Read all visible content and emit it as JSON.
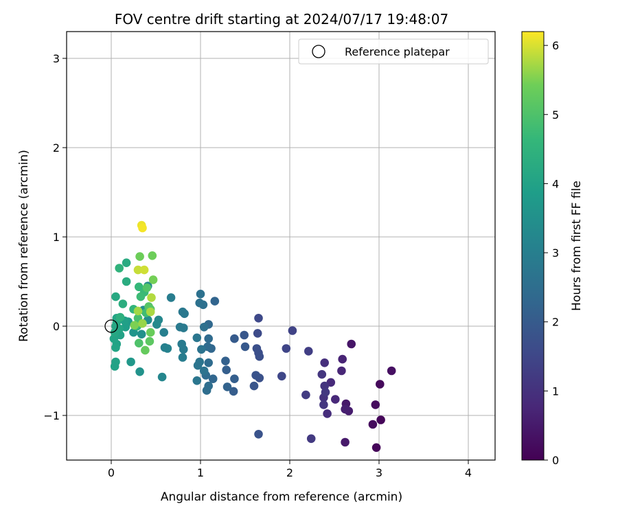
{
  "chart_data": {
    "type": "scatter",
    "title": "FOV centre drift starting at 2024/07/17 19:48:07",
    "xlabel": "Angular distance from reference (arcmin)",
    "ylabel": "Rotation from reference (arcmin)",
    "xlim": [
      -0.5,
      4.3
    ],
    "ylim": [
      -1.5,
      3.3
    ],
    "xticks": [
      0,
      1,
      2,
      3,
      4
    ],
    "yticks": [
      -1,
      0,
      1,
      2,
      3
    ],
    "ytick_labels": [
      "−1",
      "0",
      "1",
      "2",
      "3"
    ],
    "grid": true,
    "legend": {
      "placement": "top-right",
      "entries": [
        "Reference platepar"
      ]
    },
    "reference_point": {
      "x": 0,
      "y": 0,
      "marker": "open-circle",
      "color": "#000000"
    },
    "colorbar": {
      "label": "Hours from first FF file",
      "range": [
        0,
        6.2
      ],
      "ticks": [
        0,
        1,
        2,
        3,
        4,
        5,
        6
      ],
      "colormap": "viridis"
    },
    "points": [
      {
        "x": 3.02,
        "y": -1.05,
        "c": 0.1
      },
      {
        "x": 3.01,
        "y": -0.65,
        "c": 0.15
      },
      {
        "x": 2.97,
        "y": -1.36,
        "c": 0.1
      },
      {
        "x": 2.93,
        "y": -1.1,
        "c": 0.2
      },
      {
        "x": 2.96,
        "y": -0.88,
        "c": 0.2
      },
      {
        "x": 3.14,
        "y": -0.5,
        "c": 0.3
      },
      {
        "x": 2.69,
        "y": -0.2,
        "c": 0.4
      },
      {
        "x": 2.63,
        "y": -0.87,
        "c": 0.45
      },
      {
        "x": 2.62,
        "y": -1.3,
        "c": 0.5
      },
      {
        "x": 2.66,
        "y": -0.95,
        "c": 0.55
      },
      {
        "x": 2.62,
        "y": -0.93,
        "c": 0.6
      },
      {
        "x": 2.59,
        "y": -0.37,
        "c": 0.7
      },
      {
        "x": 2.58,
        "y": -0.5,
        "c": 0.75
      },
      {
        "x": 2.51,
        "y": -0.82,
        "c": 0.8
      },
      {
        "x": 2.46,
        "y": -0.63,
        "c": 0.85
      },
      {
        "x": 2.42,
        "y": -0.98,
        "c": 0.9
      },
      {
        "x": 2.39,
        "y": -0.41,
        "c": 0.95
      },
      {
        "x": 2.38,
        "y": -0.8,
        "c": 1.0
      },
      {
        "x": 2.39,
        "y": -0.67,
        "c": 1.05
      },
      {
        "x": 2.36,
        "y": -0.54,
        "c": 1.1
      },
      {
        "x": 2.38,
        "y": -0.88,
        "c": 1.1
      },
      {
        "x": 2.4,
        "y": -0.74,
        "c": 1.15
      },
      {
        "x": 2.24,
        "y": -1.26,
        "c": 1.2
      },
      {
        "x": 2.18,
        "y": -0.77,
        "c": 1.25
      },
      {
        "x": 2.21,
        "y": -0.28,
        "c": 1.3
      },
      {
        "x": 2.03,
        "y": -0.05,
        "c": 1.4
      },
      {
        "x": 1.96,
        "y": -0.25,
        "c": 1.45
      },
      {
        "x": 1.91,
        "y": -0.56,
        "c": 1.5
      },
      {
        "x": 1.65,
        "y": 0.09,
        "c": 1.55
      },
      {
        "x": 1.64,
        "y": -0.08,
        "c": 1.6
      },
      {
        "x": 1.65,
        "y": -0.3,
        "c": 1.65
      },
      {
        "x": 1.66,
        "y": -0.34,
        "c": 1.7
      },
      {
        "x": 1.63,
        "y": -0.25,
        "c": 1.7
      },
      {
        "x": 1.66,
        "y": -0.58,
        "c": 1.75
      },
      {
        "x": 1.62,
        "y": -0.55,
        "c": 1.8
      },
      {
        "x": 1.65,
        "y": -1.21,
        "c": 1.8
      },
      {
        "x": 1.6,
        "y": -0.67,
        "c": 1.85
      },
      {
        "x": 1.49,
        "y": -0.1,
        "c": 1.9
      },
      {
        "x": 1.5,
        "y": -0.23,
        "c": 1.95
      },
      {
        "x": 1.38,
        "y": -0.14,
        "c": 2.0
      },
      {
        "x": 1.37,
        "y": -0.73,
        "c": 2.05
      },
      {
        "x": 1.38,
        "y": -0.59,
        "c": 2.1
      },
      {
        "x": 1.29,
        "y": -0.49,
        "c": 2.1
      },
      {
        "x": 1.28,
        "y": -0.39,
        "c": 2.15
      },
      {
        "x": 1.3,
        "y": -0.68,
        "c": 2.2
      },
      {
        "x": 1.16,
        "y": 0.28,
        "c": 2.25
      },
      {
        "x": 1.14,
        "y": -0.59,
        "c": 2.3
      },
      {
        "x": 1.12,
        "y": -0.25,
        "c": 2.3
      },
      {
        "x": 1.09,
        "y": 0.02,
        "c": 2.35
      },
      {
        "x": 1.09,
        "y": -0.14,
        "c": 2.4
      },
      {
        "x": 1.08,
        "y": -0.23,
        "c": 2.4
      },
      {
        "x": 1.09,
        "y": -0.41,
        "c": 2.45
      },
      {
        "x": 1.06,
        "y": -0.55,
        "c": 2.45
      },
      {
        "x": 1.09,
        "y": -0.67,
        "c": 2.5
      },
      {
        "x": 1.07,
        "y": -0.72,
        "c": 2.5
      },
      {
        "x": 1.04,
        "y": -0.01,
        "c": 2.55
      },
      {
        "x": 1.03,
        "y": 0.24,
        "c": 2.55
      },
      {
        "x": 1.0,
        "y": 0.36,
        "c": 2.6
      },
      {
        "x": 0.99,
        "y": 0.26,
        "c": 2.6
      },
      {
        "x": 1.01,
        "y": -0.26,
        "c": 2.65
      },
      {
        "x": 1.04,
        "y": -0.5,
        "c": 2.65
      },
      {
        "x": 0.99,
        "y": -0.4,
        "c": 2.7
      },
      {
        "x": 0.97,
        "y": -0.44,
        "c": 2.7
      },
      {
        "x": 0.96,
        "y": -0.61,
        "c": 2.75
      },
      {
        "x": 0.96,
        "y": -0.13,
        "c": 2.75
      },
      {
        "x": 0.8,
        "y": 0.16,
        "c": 2.8
      },
      {
        "x": 0.82,
        "y": 0.14,
        "c": 2.8
      },
      {
        "x": 0.81,
        "y": -0.02,
        "c": 2.85
      },
      {
        "x": 0.77,
        "y": -0.01,
        "c": 2.85
      },
      {
        "x": 0.79,
        "y": -0.2,
        "c": 2.9
      },
      {
        "x": 0.81,
        "y": -0.26,
        "c": 2.9
      },
      {
        "x": 0.8,
        "y": -0.35,
        "c": 2.95
      },
      {
        "x": 0.67,
        "y": 0.32,
        "c": 2.95
      },
      {
        "x": 0.59,
        "y": -0.07,
        "c": 3.0
      },
      {
        "x": 0.6,
        "y": -0.24,
        "c": 3.05
      },
      {
        "x": 0.63,
        "y": -0.25,
        "c": 3.1
      },
      {
        "x": 0.57,
        "y": -0.57,
        "c": 3.2
      },
      {
        "x": 0.53,
        "y": 0.07,
        "c": 3.25
      },
      {
        "x": 0.51,
        "y": 0.02,
        "c": 3.3
      },
      {
        "x": 0.41,
        "y": 0.45,
        "c": 3.35
      },
      {
        "x": 0.41,
        "y": 0.07,
        "c": 3.4
      },
      {
        "x": 0.36,
        "y": 0.18,
        "c": 3.45
      },
      {
        "x": 0.34,
        "y": -0.09,
        "c": 3.5
      },
      {
        "x": 0.32,
        "y": -0.51,
        "c": 3.55
      },
      {
        "x": 0.27,
        "y": 0.0,
        "c": 3.6
      },
      {
        "x": 0.25,
        "y": -0.07,
        "c": 3.6
      },
      {
        "x": 0.22,
        "y": -0.4,
        "c": 3.7
      },
      {
        "x": 0.19,
        "y": 0.05,
        "c": 3.8
      },
      {
        "x": 0.16,
        "y": -0.01,
        "c": 3.9
      },
      {
        "x": 0.15,
        "y": 0.06,
        "c": 3.95
      },
      {
        "x": 0.1,
        "y": -0.1,
        "c": 4.0
      },
      {
        "x": 0.06,
        "y": -0.2,
        "c": 4.0
      },
      {
        "x": 0.05,
        "y": -0.4,
        "c": 4.0
      },
      {
        "x": 0.04,
        "y": -0.45,
        "c": 4.0
      },
      {
        "x": 0.03,
        "y": -0.14,
        "c": 4.05
      },
      {
        "x": 0.05,
        "y": -0.24,
        "c": 4.05
      },
      {
        "x": 0.06,
        "y": 0.09,
        "c": 4.05
      },
      {
        "x": 0.05,
        "y": 0.0,
        "c": 4.1
      },
      {
        "x": 0.09,
        "y": -0.03,
        "c": 4.1
      },
      {
        "x": 0.06,
        "y": 0.04,
        "c": 4.15
      },
      {
        "x": 0.04,
        "y": -0.07,
        "c": 4.15
      },
      {
        "x": 0.05,
        "y": 0.33,
        "c": 4.2
      },
      {
        "x": 0.17,
        "y": 0.71,
        "c": 4.25
      },
      {
        "x": 0.17,
        "y": 0.5,
        "c": 4.3
      },
      {
        "x": 0.13,
        "y": 0.25,
        "c": 4.35
      },
      {
        "x": 0.1,
        "y": 0.1,
        "c": 4.4
      },
      {
        "x": 0.09,
        "y": 0.65,
        "c": 4.5
      },
      {
        "x": 0.25,
        "y": 0.19,
        "c": 4.55
      },
      {
        "x": 0.29,
        "y": 0.0,
        "c": 4.6
      },
      {
        "x": 0.31,
        "y": 0.44,
        "c": 4.65
      },
      {
        "x": 0.37,
        "y": 0.38,
        "c": 4.7
      },
      {
        "x": 0.33,
        "y": 0.33,
        "c": 4.75
      },
      {
        "x": 0.39,
        "y": 0.15,
        "c": 4.8
      },
      {
        "x": 0.3,
        "y": 0.09,
        "c": 4.9
      },
      {
        "x": 0.31,
        "y": -0.19,
        "c": 5.0
      },
      {
        "x": 0.4,
        "y": 0.43,
        "c": 5.05
      },
      {
        "x": 0.42,
        "y": 0.22,
        "c": 5.1
      },
      {
        "x": 0.44,
        "y": 0.19,
        "c": 5.15
      },
      {
        "x": 0.43,
        "y": -0.17,
        "c": 5.2
      },
      {
        "x": 0.38,
        "y": -0.27,
        "c": 5.3
      },
      {
        "x": 0.44,
        "y": -0.07,
        "c": 5.35
      },
      {
        "x": 0.32,
        "y": 0.78,
        "c": 5.4
      },
      {
        "x": 0.46,
        "y": 0.79,
        "c": 5.4
      },
      {
        "x": 0.47,
        "y": 0.52,
        "c": 5.45
      },
      {
        "x": 0.26,
        "y": 0.01,
        "c": 5.5
      },
      {
        "x": 0.35,
        "y": 0.03,
        "c": 5.65
      },
      {
        "x": 0.3,
        "y": 0.17,
        "c": 5.7
      },
      {
        "x": 0.44,
        "y": 0.16,
        "c": 5.75
      },
      {
        "x": 0.45,
        "y": 0.32,
        "c": 5.8
      },
      {
        "x": 0.3,
        "y": 0.63,
        "c": 5.9
      },
      {
        "x": 0.37,
        "y": 0.63,
        "c": 5.95
      },
      {
        "x": 0.34,
        "y": 1.13,
        "c": 6.1
      },
      {
        "x": 0.35,
        "y": 1.1,
        "c": 6.15
      }
    ]
  }
}
